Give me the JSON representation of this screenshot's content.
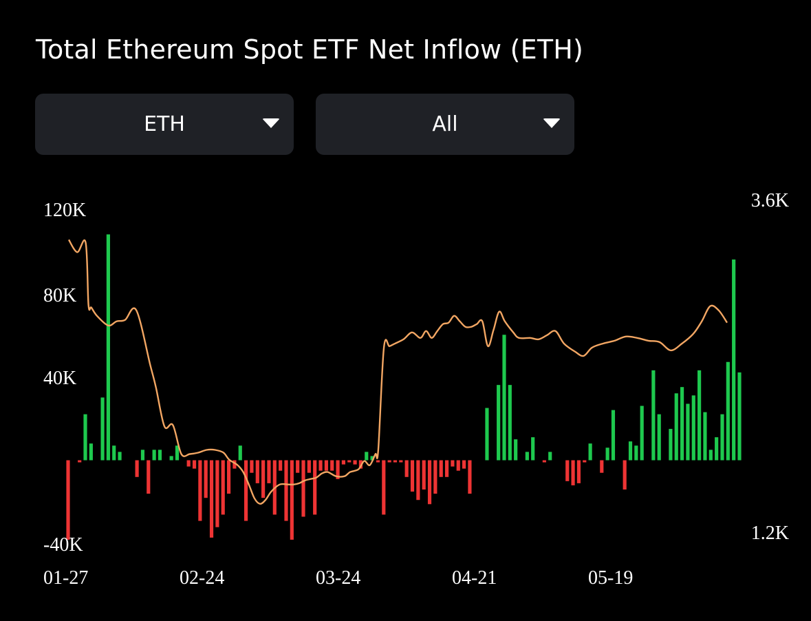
{
  "title": "Total Ethereum Spot ETF Net Inflow (ETH)",
  "controls": {
    "unit_select": {
      "value": "ETH",
      "icon": "caret-down-icon"
    },
    "range_select": {
      "value": "All",
      "icon": "caret-down-icon"
    }
  },
  "colors": {
    "inflow": "#1ec94e",
    "outflow": "#ee3434",
    "line": "#f2a663",
    "background": "#000000",
    "control_bg": "#1f2126"
  },
  "chart_data": {
    "type": "bar",
    "title": "Total Ethereum Spot ETF Net Inflow (ETH)",
    "x_tick_labels": [
      "01-27",
      "02-24",
      "03-24",
      "04-21",
      "05-19"
    ],
    "x_tick_index": [
      0,
      20,
      40,
      60,
      80
    ],
    "left_axis": {
      "ticks": [
        "120K",
        "80K",
        "40K",
        "-40K"
      ],
      "range": [
        -40000,
        120000
      ]
    },
    "right_axis": {
      "ticks": [
        "3.6K",
        "1.2K"
      ],
      "range": [
        1200,
        3600
      ]
    },
    "series": [
      {
        "type": "bar",
        "axis": "left",
        "values": [
          -38000,
          0,
          -1000,
          22000,
          8000,
          0,
          30000,
          108000,
          7000,
          4000,
          0,
          0,
          -8000,
          5000,
          -16000,
          5000,
          5000,
          0,
          2000,
          7000,
          0,
          -3000,
          -4000,
          -29000,
          -18000,
          -37000,
          -32000,
          -26000,
          -16000,
          -4000,
          7000,
          -29000,
          -6000,
          -11000,
          -18000,
          -11000,
          -26000,
          -5000,
          -29000,
          -38000,
          -6000,
          -27000,
          -6000,
          -26000,
          -5000,
          -5000,
          -5000,
          -9000,
          -2000,
          -1000,
          -2000,
          -4000,
          4000,
          2000,
          -1000,
          -26000,
          -1000,
          -1000,
          -1000,
          -8000,
          -15000,
          -19000,
          -14000,
          -21000,
          -16000,
          -8000,
          -8000,
          -3000,
          -5000,
          -4000,
          -16000,
          0,
          0,
          25000,
          0,
          36000,
          60000,
          36000,
          10000,
          0,
          4000,
          11000,
          0,
          -1000,
          4000,
          0,
          0,
          -10000,
          -12000,
          -11000,
          -1000,
          8000,
          0,
          -6000,
          6000,
          24000,
          0,
          -14000,
          9000,
          7000,
          26000,
          0,
          43000,
          22000,
          0,
          15000,
          32000,
          35000,
          27000,
          31000,
          43000,
          23000,
          5000,
          11000,
          22000,
          47000,
          96000,
          42000
        ]
      },
      {
        "type": "line",
        "axis": "right",
        "name": "",
        "points": [
          [
            0,
            3310
          ],
          [
            3,
            3220
          ],
          [
            6,
            3290
          ],
          [
            7,
            2840
          ],
          [
            8,
            2820
          ],
          [
            10,
            2760
          ],
          [
            14,
            2690
          ],
          [
            17,
            2720
          ],
          [
            20,
            2730
          ],
          [
            24,
            2800
          ],
          [
            29,
            2400
          ],
          [
            31,
            2240
          ],
          [
            34,
            1960
          ],
          [
            37,
            1970
          ],
          [
            40,
            1760
          ],
          [
            43,
            1760
          ],
          [
            46,
            1770
          ],
          [
            49,
            1790
          ],
          [
            52,
            1790
          ],
          [
            55,
            1770
          ],
          [
            57,
            1720
          ],
          [
            60,
            1680
          ],
          [
            62,
            1630
          ],
          [
            64,
            1540
          ],
          [
            66,
            1440
          ],
          [
            68,
            1400
          ],
          [
            70,
            1430
          ],
          [
            72,
            1490
          ],
          [
            75,
            1540
          ],
          [
            78,
            1540
          ],
          [
            80,
            1540
          ],
          [
            82,
            1550
          ],
          [
            84,
            1570
          ],
          [
            86,
            1580
          ],
          [
            88,
            1590
          ],
          [
            90,
            1620
          ],
          [
            92,
            1630
          ],
          [
            95,
            1600
          ],
          [
            98,
            1600
          ],
          [
            100,
            1630
          ],
          [
            103,
            1650
          ],
          [
            105,
            1710
          ],
          [
            107,
            1680
          ],
          [
            109,
            1760
          ],
          [
            110,
            1790
          ],
          [
            112,
            2530
          ],
          [
            114,
            2540
          ],
          [
            116,
            2560
          ],
          [
            119,
            2590
          ],
          [
            122,
            2640
          ],
          [
            125,
            2600
          ],
          [
            127,
            2650
          ],
          [
            129,
            2600
          ],
          [
            131,
            2650
          ],
          [
            133,
            2700
          ],
          [
            135,
            2710
          ],
          [
            137,
            2760
          ],
          [
            139,
            2720
          ],
          [
            141,
            2680
          ],
          [
            143,
            2680
          ],
          [
            145,
            2700
          ],
          [
            147,
            2720
          ],
          [
            149,
            2540
          ],
          [
            151,
            2660
          ],
          [
            153,
            2790
          ],
          [
            155,
            2720
          ],
          [
            158,
            2640
          ],
          [
            160,
            2600
          ],
          [
            164,
            2600
          ],
          [
            167,
            2590
          ],
          [
            170,
            2620
          ],
          [
            173,
            2650
          ],
          [
            176,
            2560
          ],
          [
            180,
            2500
          ],
          [
            183,
            2470
          ],
          [
            186,
            2530
          ],
          [
            190,
            2560
          ],
          [
            194,
            2580
          ],
          [
            198,
            2610
          ],
          [
            202,
            2600
          ],
          [
            206,
            2580
          ],
          [
            210,
            2570
          ],
          [
            214,
            2510
          ],
          [
            218,
            2560
          ],
          [
            222,
            2630
          ],
          [
            225,
            2720
          ],
          [
            228,
            2830
          ],
          [
            231,
            2800
          ],
          [
            234,
            2710
          ]
        ]
      }
    ]
  }
}
